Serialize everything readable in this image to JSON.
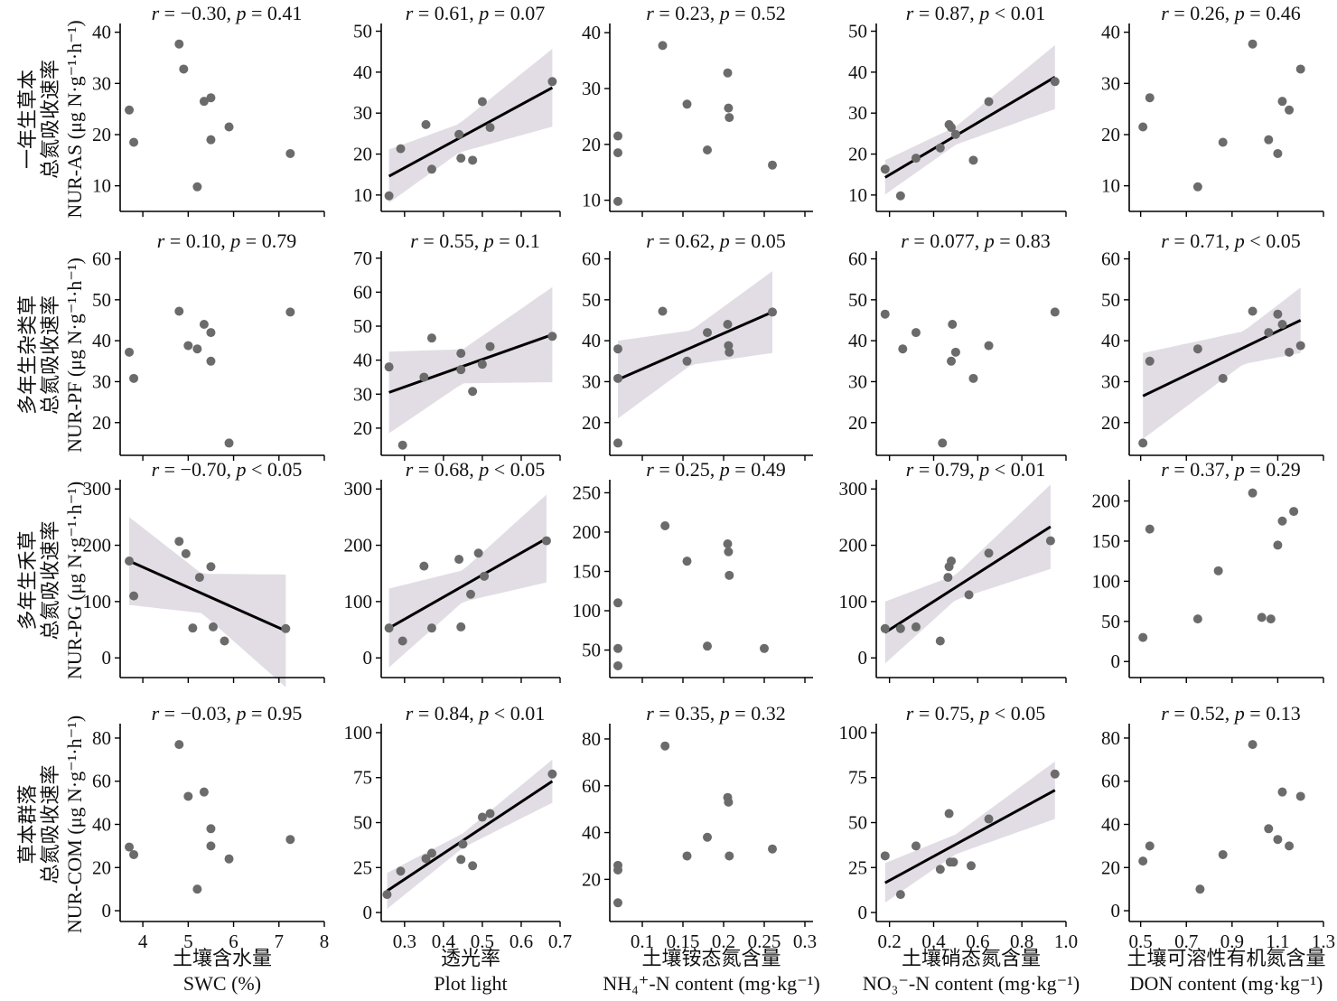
{
  "figure": {
    "row_labels": [
      [
        "一年生草本",
        "总氮吸收速率",
        "NUR-AS (μg N·g⁻¹·h⁻¹)"
      ],
      [
        "多年生杂类草",
        "总氮吸收速率",
        "NUR-PF (μg N·g⁻¹·h⁻¹)"
      ],
      [
        "多年生禾草",
        "总氮吸收速率",
        "NUR-PG (μg N·g⁻¹·h⁻¹)"
      ],
      [
        "草本群落",
        "总氮吸收速率",
        "NUR-COM (μg N·g⁻¹·h⁻¹)"
      ]
    ],
    "col_labels": [
      [
        "土壤含水量",
        "SWC (%)"
      ],
      [
        "透光率",
        "Plot light"
      ],
      [
        "土壤铵态氮含量",
        "NH₄⁺-N content (mg·kg⁻¹)"
      ],
      [
        "土壤硝态氮含量",
        "NO₃⁻-N content (mg·kg⁻¹)"
      ],
      [
        "土壤可溶性有机氮含量",
        "DON content (mg·kg⁻¹)"
      ]
    ],
    "colors": {
      "points": "#6b6b6b",
      "line": "#000000",
      "band": "#e2dde4",
      "axis": "#000000"
    }
  },
  "chart_data": [
    {
      "type": "scatter",
      "row": 0,
      "col": 0,
      "stat": "r = −0.30, p = 0.41",
      "x": [
        3.7,
        3.8,
        4.8,
        4.9,
        5.2,
        5.35,
        5.5,
        5.5,
        5.9,
        7.25
      ],
      "y": [
        24.8,
        18.5,
        37.7,
        32.8,
        9.8,
        26.5,
        27.2,
        19,
        21.5,
        16.3
      ],
      "xlim": [
        3.5,
        8
      ],
      "ylim": [
        5,
        41
      ],
      "xticks": [
        4,
        5,
        6,
        7,
        8
      ],
      "yticks": [
        10,
        20,
        30,
        40
      ],
      "fit": false
    },
    {
      "type": "scatter",
      "row": 0,
      "col": 1,
      "stat": "r = 0.61, p = 0.07",
      "x": [
        0.26,
        0.29,
        0.355,
        0.37,
        0.44,
        0.445,
        0.475,
        0.5,
        0.52,
        0.68
      ],
      "y": [
        9.8,
        21.3,
        27.2,
        16.3,
        24.8,
        19,
        18.5,
        32.8,
        26.5,
        37.7
      ],
      "xlim": [
        0.24,
        0.7
      ],
      "ylim": [
        6,
        51
      ],
      "xticks": [
        0.3,
        0.4,
        0.5,
        0.6,
        0.7
      ],
      "yticks": [
        10,
        20,
        30,
        40,
        50
      ],
      "fit": true,
      "fitline": [
        [
          0.26,
          14.6
        ],
        [
          0.68,
          36.2
        ]
      ],
      "band_half": [
        [
          0.26,
          6.5
        ],
        [
          0.44,
          3.5
        ],
        [
          0.68,
          9.5
        ]
      ]
    },
    {
      "type": "scatter",
      "row": 0,
      "col": 2,
      "stat": "r = 0.23, p = 0.52",
      "x": [
        0.07,
        0.07,
        0.07,
        0.125,
        0.155,
        0.18,
        0.205,
        0.206,
        0.207,
        0.26
      ],
      "y": [
        21.5,
        18.5,
        9.8,
        37.7,
        27.2,
        19,
        32.8,
        26.5,
        24.8,
        16.3
      ],
      "xlim": [
        0.06,
        0.31
      ],
      "ylim": [
        8,
        41
      ],
      "xticks": [
        0.1,
        0.15,
        0.2,
        0.25,
        0.3
      ],
      "yticks": [
        10,
        20,
        30,
        40
      ],
      "fit": false
    },
    {
      "type": "scatter",
      "row": 0,
      "col": 3,
      "stat": "r = 0.87, p < 0.01",
      "x": [
        0.18,
        0.25,
        0.32,
        0.43,
        0.47,
        0.48,
        0.5,
        0.58,
        0.65,
        0.95
      ],
      "y": [
        16.3,
        9.8,
        19,
        21.5,
        27.2,
        26.5,
        24.8,
        18.5,
        32.8,
        37.7
      ],
      "xlim": [
        0.14,
        1.0
      ],
      "ylim": [
        6,
        51
      ],
      "xticks": [
        0.2,
        0.4,
        0.6,
        0.8,
        1.0
      ],
      "yticks": [
        10,
        20,
        30,
        40,
        50
      ],
      "fit": true,
      "fitline": [
        [
          0.18,
          14.3
        ],
        [
          0.95,
          38.8
        ]
      ],
      "band_half": [
        [
          0.18,
          4.2
        ],
        [
          0.5,
          2.2
        ],
        [
          0.95,
          7.8
        ]
      ]
    },
    {
      "type": "scatter",
      "row": 0,
      "col": 4,
      "stat": "r = 0.26, p = 0.46",
      "x": [
        0.51,
        0.54,
        0.75,
        0.86,
        0.99,
        1.06,
        1.1,
        1.12,
        1.15,
        1.2
      ],
      "y": [
        21.5,
        27.2,
        9.8,
        18.5,
        37.7,
        19,
        16.3,
        26.5,
        24.8,
        32.8
      ],
      "xlim": [
        0.45,
        1.3
      ],
      "ylim": [
        5,
        41
      ],
      "xticks": [
        0.5,
        0.7,
        0.9,
        1.1,
        1.3
      ],
      "yticks": [
        10,
        20,
        30,
        40
      ],
      "fit": false
    },
    {
      "type": "scatter",
      "row": 1,
      "col": 0,
      "stat": "r = 0.10, p = 0.79",
      "x": [
        3.7,
        3.8,
        4.8,
        5.0,
        5.2,
        5.35,
        5.5,
        5.5,
        5.9,
        7.25
      ],
      "y": [
        37.2,
        30.8,
        47.2,
        38.8,
        38,
        44,
        42,
        35,
        15,
        47
      ],
      "xlim": [
        3.5,
        8
      ],
      "ylim": [
        12,
        61
      ],
      "xticks": [
        4,
        5,
        6,
        7,
        8
      ],
      "yticks": [
        20,
        30,
        40,
        50,
        60
      ],
      "fit": false
    },
    {
      "type": "scatter",
      "row": 1,
      "col": 1,
      "stat": "r = 0.55, p = 0.1",
      "x": [
        0.26,
        0.295,
        0.35,
        0.37,
        0.445,
        0.445,
        0.475,
        0.5,
        0.52,
        0.68
      ],
      "y": [
        38,
        15,
        35,
        46.5,
        37.2,
        42,
        30.8,
        38.8,
        44,
        47
      ],
      "xlim": [
        0.24,
        0.7
      ],
      "ylim": [
        12,
        71
      ],
      "xticks": [
        0.3,
        0.4,
        0.5,
        0.6,
        0.7
      ],
      "yticks": [
        20,
        30,
        40,
        50,
        60,
        70
      ],
      "fit": true,
      "fitline": [
        [
          0.26,
          30.5
        ],
        [
          0.68,
          47.5
        ]
      ],
      "band_half": [
        [
          0.26,
          12
        ],
        [
          0.45,
          5
        ],
        [
          0.68,
          14
        ]
      ]
    },
    {
      "type": "scatter",
      "row": 1,
      "col": 2,
      "stat": "r = 0.62, p = 0.05",
      "x": [
        0.07,
        0.07,
        0.07,
        0.125,
        0.155,
        0.18,
        0.205,
        0.206,
        0.207,
        0.26
      ],
      "y": [
        38,
        30.8,
        15,
        47.2,
        35,
        42,
        44,
        38.8,
        37.2,
        47
      ],
      "xlim": [
        0.06,
        0.31
      ],
      "ylim": [
        12,
        61
      ],
      "xticks": [
        0.1,
        0.15,
        0.2,
        0.25,
        0.3
      ],
      "yticks": [
        20,
        30,
        40,
        50,
        60
      ],
      "fit": true,
      "fitline": [
        [
          0.07,
          30.5
        ],
        [
          0.26,
          47
        ]
      ],
      "band_half": [
        [
          0.07,
          9.5
        ],
        [
          0.16,
          4.2
        ],
        [
          0.26,
          10
        ]
      ]
    },
    {
      "type": "scatter",
      "row": 1,
      "col": 3,
      "stat": "r = 0.077, p = 0.83",
      "x": [
        0.18,
        0.26,
        0.32,
        0.44,
        0.48,
        0.485,
        0.5,
        0.58,
        0.65,
        0.95
      ],
      "y": [
        46.5,
        38,
        42,
        15,
        35,
        44,
        37.2,
        30.8,
        38.8,
        47
      ],
      "xlim": [
        0.14,
        1.0
      ],
      "ylim": [
        12,
        61
      ],
      "xticks": [
        0.2,
        0.4,
        0.6,
        0.8,
        1.0
      ],
      "yticks": [
        20,
        30,
        40,
        50,
        60
      ],
      "fit": false
    },
    {
      "type": "scatter",
      "row": 1,
      "col": 4,
      "stat": "r = 0.71, p < 0.05",
      "x": [
        0.51,
        0.54,
        0.75,
        0.86,
        0.99,
        1.06,
        1.1,
        1.12,
        1.15,
        1.2
      ],
      "y": [
        15,
        35,
        38,
        30.8,
        47.2,
        42,
        46.5,
        44,
        37.2,
        38.8
      ],
      "xlim": [
        0.45,
        1.3
      ],
      "ylim": [
        12,
        61
      ],
      "xticks": [
        0.5,
        0.7,
        0.9,
        1.1,
        1.3
      ],
      "yticks": [
        20,
        30,
        40,
        50,
        60
      ],
      "fit": true,
      "fitline": [
        [
          0.51,
          26.5
        ],
        [
          1.2,
          45
        ]
      ],
      "band_half": [
        [
          0.51,
          10.5
        ],
        [
          0.95,
          4
        ],
        [
          1.2,
          8
        ]
      ]
    },
    {
      "type": "scatter",
      "row": 2,
      "col": 0,
      "stat": "r = −0.70, p < 0.05",
      "x": [
        3.7,
        3.8,
        4.8,
        4.95,
        5.1,
        5.25,
        5.5,
        5.55,
        5.8,
        7.15
      ],
      "y": [
        172,
        110,
        207,
        185,
        53,
        143,
        162,
        55,
        30,
        52
      ],
      "xlim": [
        3.5,
        8
      ],
      "ylim": [
        -35,
        310
      ],
      "xticks": [
        4,
        5,
        6,
        7,
        8
      ],
      "yticks": [
        0,
        100,
        200,
        300
      ],
      "fit": true,
      "fitline": [
        [
          3.7,
          172
        ],
        [
          7.15,
          48
        ]
      ],
      "band_half": [
        [
          3.7,
          78
        ],
        [
          5.3,
          35
        ],
        [
          7.15,
          100
        ]
      ]
    },
    {
      "type": "scatter",
      "row": 2,
      "col": 1,
      "stat": "r = 0.68, p < 0.05",
      "x": [
        0.26,
        0.295,
        0.35,
        0.37,
        0.44,
        0.445,
        0.47,
        0.49,
        0.505,
        0.665
      ],
      "y": [
        53,
        30,
        163,
        53,
        175,
        55,
        113,
        186,
        145,
        208
      ],
      "xlim": [
        0.24,
        0.7
      ],
      "ylim": [
        -35,
        310
      ],
      "xticks": [
        0.3,
        0.4,
        0.5,
        0.6,
        0.7
      ],
      "yticks": [
        0,
        100,
        200,
        300
      ],
      "fit": true,
      "fitline": [
        [
          0.26,
          53
        ],
        [
          0.665,
          212
        ]
      ],
      "band_half": [
        [
          0.26,
          70
        ],
        [
          0.45,
          28
        ],
        [
          0.665,
          78
        ]
      ]
    },
    {
      "type": "scatter",
      "row": 2,
      "col": 2,
      "stat": "r = 0.25, p = 0.49",
      "x": [
        0.07,
        0.07,
        0.07,
        0.128,
        0.155,
        0.18,
        0.205,
        0.206,
        0.207,
        0.25
      ],
      "y": [
        110,
        52,
        30,
        208,
        163,
        55,
        185,
        175,
        145,
        52
      ],
      "xlim": [
        0.06,
        0.31
      ],
      "ylim": [
        15,
        262
      ],
      "xticks": [
        0.1,
        0.15,
        0.2,
        0.25,
        0.3
      ],
      "yticks": [
        50,
        100,
        150,
        200,
        250
      ],
      "fit": false
    },
    {
      "type": "scatter",
      "row": 2,
      "col": 3,
      "stat": "r = 0.79, p < 0.01",
      "x": [
        0.18,
        0.25,
        0.32,
        0.43,
        0.465,
        0.47,
        0.48,
        0.56,
        0.65,
        0.93
      ],
      "y": [
        52,
        52,
        55,
        30,
        143,
        162,
        172,
        112,
        186,
        208
      ],
      "xlim": [
        0.14,
        1.0
      ],
      "ylim": [
        -35,
        310
      ],
      "xticks": [
        0.2,
        0.4,
        0.6,
        0.8,
        1.0
      ],
      "yticks": [
        0,
        100,
        200,
        300
      ],
      "fit": true,
      "fitline": [
        [
          0.18,
          45
        ],
        [
          0.93,
          233
        ]
      ],
      "band_half": [
        [
          0.18,
          55
        ],
        [
          0.5,
          22
        ],
        [
          0.93,
          75
        ]
      ]
    },
    {
      "type": "scatter",
      "row": 2,
      "col": 4,
      "stat": "r = 0.37, p = 0.29",
      "x": [
        0.51,
        0.54,
        0.75,
        0.84,
        0.99,
        1.03,
        1.07,
        1.1,
        1.12,
        1.17
      ],
      "y": [
        30,
        165,
        53,
        113,
        210,
        55,
        53,
        145,
        175,
        187
      ],
      "xlim": [
        0.45,
        1.3
      ],
      "ylim": [
        -20,
        222
      ],
      "xticks": [
        0.5,
        0.7,
        0.9,
        1.1,
        1.3
      ],
      "yticks": [
        0,
        50,
        100,
        150,
        200
      ],
      "fit": false
    },
    {
      "type": "scatter",
      "row": 3,
      "col": 0,
      "stat": "r = −0.03, p = 0.95",
      "x": [
        3.7,
        3.8,
        4.8,
        5.0,
        5.2,
        5.35,
        5.5,
        5.5,
        5.9,
        7.25
      ],
      "y": [
        29.5,
        26,
        77,
        53,
        10,
        55,
        38,
        30,
        24,
        33
      ],
      "xlim": [
        3.5,
        8
      ],
      "ylim": [
        -5,
        85
      ],
      "xticks": [
        4,
        5,
        6,
        7,
        8
      ],
      "yticks": [
        0,
        20,
        40,
        60,
        80
      ],
      "fit": false
    },
    {
      "type": "scatter",
      "row": 3,
      "col": 1,
      "stat": "r = 0.84, p < 0.01",
      "x": [
        0.255,
        0.29,
        0.355,
        0.37,
        0.445,
        0.45,
        0.475,
        0.5,
        0.52,
        0.68
      ],
      "y": [
        10,
        23,
        30,
        33,
        29.5,
        38,
        26,
        53,
        55,
        77
      ],
      "xlim": [
        0.24,
        0.7
      ],
      "ylim": [
        -5,
        103
      ],
      "xticks": [
        0.3,
        0.4,
        0.5,
        0.6,
        0.7
      ],
      "yticks": [
        0,
        25,
        50,
        75,
        100
      ],
      "fit": true,
      "fitline": [
        [
          0.255,
          12
        ],
        [
          0.68,
          73
        ]
      ],
      "band_half": [
        [
          0.255,
          10
        ],
        [
          0.45,
          4
        ],
        [
          0.68,
          12
        ]
      ]
    },
    {
      "type": "scatter",
      "row": 3,
      "col": 2,
      "stat": "r = 0.35, p = 0.32",
      "x": [
        0.07,
        0.07,
        0.07,
        0.128,
        0.155,
        0.18,
        0.205,
        0.206,
        0.207,
        0.26
      ],
      "y": [
        26,
        24,
        10,
        77,
        30,
        38,
        55,
        53,
        30,
        33
      ],
      "xlim": [
        0.06,
        0.31
      ],
      "ylim": [
        2,
        85
      ],
      "xticks": [
        0.1,
        0.15,
        0.2,
        0.25,
        0.3
      ],
      "yticks": [
        20,
        40,
        60,
        80
      ],
      "fit": false
    },
    {
      "type": "scatter",
      "row": 3,
      "col": 3,
      "stat": "r = 0.75, p < 0.05",
      "x": [
        0.18,
        0.25,
        0.32,
        0.43,
        0.47,
        0.475,
        0.49,
        0.57,
        0.65,
        0.95
      ],
      "y": [
        31.5,
        10,
        37,
        24,
        55,
        28,
        28,
        26,
        52,
        77
      ],
      "xlim": [
        0.14,
        1.0
      ],
      "ylim": [
        -5,
        103
      ],
      "xticks": [
        0.2,
        0.4,
        0.6,
        0.8,
        1.0
      ],
      "yticks": [
        0,
        25,
        50,
        75,
        100
      ],
      "fit": true,
      "fitline": [
        [
          0.18,
          16.5
        ],
        [
          0.95,
          68
        ]
      ],
      "band_half": [
        [
          0.18,
          11
        ],
        [
          0.5,
          5.5
        ],
        [
          0.95,
          16
        ]
      ]
    },
    {
      "type": "scatter",
      "row": 3,
      "col": 4,
      "stat": "r = 0.52, p = 0.13",
      "x": [
        0.51,
        0.54,
        0.76,
        0.86,
        0.99,
        1.06,
        1.1,
        1.12,
        1.15,
        1.2
      ],
      "y": [
        23,
        30,
        10,
        26,
        77,
        38,
        33,
        55,
        30,
        53
      ],
      "xlim": [
        0.45,
        1.3
      ],
      "ylim": [
        -5,
        85
      ],
      "xticks": [
        0.5,
        0.7,
        0.9,
        1.1,
        1.3
      ],
      "yticks": [
        0,
        20,
        40,
        60,
        80
      ],
      "fit": false
    }
  ]
}
